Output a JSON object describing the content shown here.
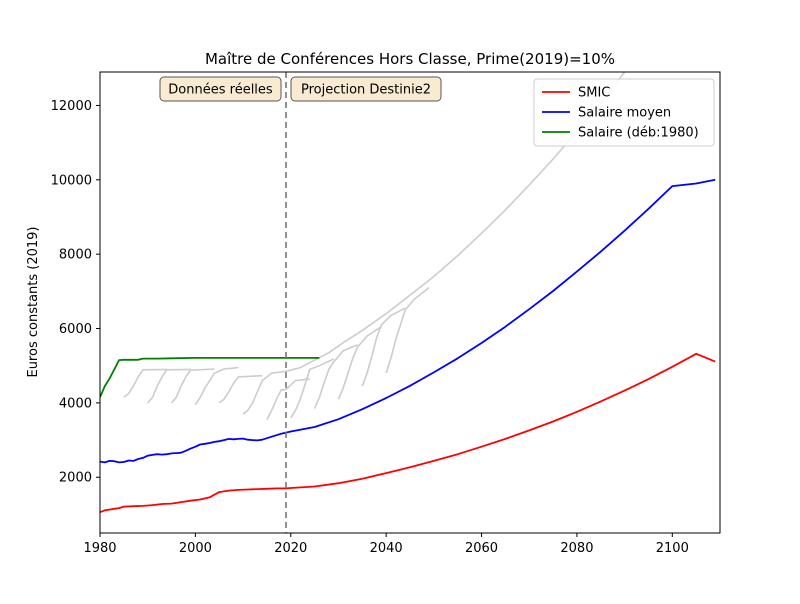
{
  "chart_data": {
    "type": "line",
    "title": "Maître de Conférences Hors Classe, Prime(2019)=10%",
    "xlabel": "",
    "ylabel": "Euros constants (2019)",
    "xlim": [
      1980,
      2110
    ],
    "ylim": [
      500,
      12900
    ],
    "x_ticks": [
      1980,
      2000,
      2020,
      2040,
      2060,
      2080,
      2100
    ],
    "y_ticks": [
      2000,
      4000,
      6000,
      8000,
      10000,
      12000
    ],
    "grid": false,
    "legend_position": "upper right",
    "divider": {
      "x": 2019,
      "style": "dashed",
      "color": "#777777"
    },
    "annotations": [
      {
        "text": "Données réelles",
        "x": 2004.5,
        "y": 12500
      },
      {
        "text": "Projection Destinie2",
        "x": 2029.5,
        "y": 12500
      }
    ],
    "series": [
      {
        "name": "SMIC",
        "color": "#ff0000",
        "points": [
          [
            1980,
            1060
          ],
          [
            1981,
            1110
          ],
          [
            1982,
            1130
          ],
          [
            1983,
            1150
          ],
          [
            1984,
            1170
          ],
          [
            1985,
            1210
          ],
          [
            1987,
            1220
          ],
          [
            1989,
            1230
          ],
          [
            1991,
            1250
          ],
          [
            1993,
            1280
          ],
          [
            1995,
            1290
          ],
          [
            1997,
            1330
          ],
          [
            1999,
            1370
          ],
          [
            2001,
            1400
          ],
          [
            2003,
            1460
          ],
          [
            2005,
            1600
          ],
          [
            2007,
            1640
          ],
          [
            2009,
            1660
          ],
          [
            2011,
            1670
          ],
          [
            2013,
            1680
          ],
          [
            2015,
            1690
          ],
          [
            2017,
            1700
          ],
          [
            2019,
            1700
          ],
          [
            2020,
            1710
          ],
          [
            2025,
            1750
          ],
          [
            2030,
            1840
          ],
          [
            2035,
            1960
          ],
          [
            2040,
            2110
          ],
          [
            2045,
            2270
          ],
          [
            2050,
            2440
          ],
          [
            2055,
            2620
          ],
          [
            2060,
            2820
          ],
          [
            2065,
            3030
          ],
          [
            2070,
            3260
          ],
          [
            2075,
            3500
          ],
          [
            2080,
            3760
          ],
          [
            2085,
            4040
          ],
          [
            2090,
            4330
          ],
          [
            2095,
            4640
          ],
          [
            2100,
            4970
          ],
          [
            2105,
            5320
          ],
          [
            2109,
            5110
          ]
        ]
      },
      {
        "name": "Salaire moyen",
        "color": "#0000ff",
        "points": [
          [
            1980,
            2420
          ],
          [
            1981,
            2400
          ],
          [
            1982,
            2440
          ],
          [
            1983,
            2430
          ],
          [
            1984,
            2400
          ],
          [
            1985,
            2410
          ],
          [
            1986,
            2450
          ],
          [
            1987,
            2440
          ],
          [
            1988,
            2490
          ],
          [
            1989,
            2520
          ],
          [
            1990,
            2580
          ],
          [
            1991,
            2600
          ],
          [
            1992,
            2620
          ],
          [
            1993,
            2610
          ],
          [
            1994,
            2620
          ],
          [
            1995,
            2640
          ],
          [
            1996,
            2650
          ],
          [
            1997,
            2660
          ],
          [
            1998,
            2710
          ],
          [
            1999,
            2770
          ],
          [
            2000,
            2820
          ],
          [
            2001,
            2880
          ],
          [
            2002,
            2900
          ],
          [
            2003,
            2920
          ],
          [
            2004,
            2950
          ],
          [
            2005,
            2970
          ],
          [
            2006,
            3000
          ],
          [
            2007,
            3030
          ],
          [
            2008,
            3020
          ],
          [
            2009,
            3030
          ],
          [
            2010,
            3040
          ],
          [
            2011,
            3010
          ],
          [
            2012,
            3000
          ],
          [
            2013,
            2990
          ],
          [
            2014,
            3010
          ],
          [
            2015,
            3050
          ],
          [
            2016,
            3090
          ],
          [
            2017,
            3130
          ],
          [
            2018,
            3170
          ],
          [
            2019,
            3200
          ],
          [
            2020,
            3230
          ],
          [
            2025,
            3350
          ],
          [
            2030,
            3560
          ],
          [
            2035,
            3830
          ],
          [
            2040,
            4130
          ],
          [
            2045,
            4460
          ],
          [
            2050,
            4820
          ],
          [
            2055,
            5200
          ],
          [
            2060,
            5610
          ],
          [
            2065,
            6050
          ],
          [
            2070,
            6520
          ],
          [
            2075,
            7010
          ],
          [
            2080,
            7530
          ],
          [
            2085,
            8070
          ],
          [
            2090,
            8630
          ],
          [
            2095,
            9220
          ],
          [
            2100,
            9830
          ],
          [
            2105,
            9900
          ],
          [
            2109,
            10000
          ]
        ]
      },
      {
        "name": "Salaire (déb:1980)",
        "color": "#008000",
        "points": [
          [
            1980,
            4150
          ],
          [
            1981,
            4450
          ],
          [
            1982,
            4650
          ],
          [
            1983,
            4900
          ],
          [
            1984,
            5150
          ],
          [
            1985,
            5160
          ],
          [
            1986,
            5160
          ],
          [
            1987,
            5160
          ],
          [
            1988,
            5160
          ],
          [
            1989,
            5190
          ],
          [
            1992,
            5190
          ],
          [
            1995,
            5200
          ],
          [
            2000,
            5210
          ],
          [
            2005,
            5210
          ],
          [
            2010,
            5210
          ],
          [
            2015,
            5210
          ],
          [
            2020,
            5210
          ],
          [
            2026,
            5210
          ]
        ]
      }
    ],
    "background_series": {
      "color": "#cccccc",
      "lines": [
        [
          [
            1985,
            4150
          ],
          [
            1986,
            4250
          ],
          [
            1987,
            4450
          ],
          [
            1988,
            4700
          ],
          [
            1989,
            4890
          ],
          [
            1994,
            4900
          ]
        ],
        [
          [
            1990,
            4000
          ],
          [
            1991,
            4150
          ],
          [
            1992,
            4450
          ],
          [
            1993,
            4700
          ],
          [
            1994,
            4890
          ],
          [
            1999,
            4900
          ]
        ],
        [
          [
            1995,
            4000
          ],
          [
            1996,
            4150
          ],
          [
            1997,
            4450
          ],
          [
            1998,
            4700
          ],
          [
            1999,
            4880
          ],
          [
            2004,
            4910
          ]
        ],
        [
          [
            2000,
            3950
          ],
          [
            2001,
            4150
          ],
          [
            2002,
            4400
          ],
          [
            2003,
            4600
          ],
          [
            2004,
            4800
          ],
          [
            2006,
            4910
          ],
          [
            2009,
            4950
          ]
        ],
        [
          [
            2005,
            4000
          ],
          [
            2006,
            4100
          ],
          [
            2007,
            4300
          ],
          [
            2008,
            4520
          ],
          [
            2009,
            4700
          ],
          [
            2014,
            4730
          ]
        ],
        [
          [
            2010,
            3700
          ],
          [
            2011,
            3800
          ],
          [
            2012,
            4000
          ],
          [
            2013,
            4300
          ],
          [
            2014,
            4600
          ],
          [
            2016,
            4800
          ],
          [
            2019,
            4850
          ]
        ],
        [
          [
            2015,
            3550
          ],
          [
            2016,
            3800
          ],
          [
            2017,
            4100
          ],
          [
            2018,
            4350
          ],
          [
            2019,
            4360
          ],
          [
            2021,
            4600
          ],
          [
            2024,
            4640
          ]
        ],
        [
          [
            2020,
            3600
          ],
          [
            2021,
            3800
          ],
          [
            2022,
            4100
          ],
          [
            2023,
            4500
          ],
          [
            2024,
            4900
          ],
          [
            2026,
            5000
          ],
          [
            2029,
            5180
          ]
        ],
        [
          [
            2025,
            3850
          ],
          [
            2026,
            4150
          ],
          [
            2027,
            4550
          ],
          [
            2028,
            4900
          ],
          [
            2029,
            5100
          ],
          [
            2031,
            5400
          ],
          [
            2034,
            5560
          ]
        ],
        [
          [
            2030,
            4100
          ],
          [
            2031,
            4400
          ],
          [
            2032,
            4800
          ],
          [
            2033,
            5200
          ],
          [
            2034,
            5500
          ],
          [
            2036,
            5800
          ],
          [
            2039,
            6050
          ]
        ],
        [
          [
            2035,
            4450
          ],
          [
            2036,
            4800
          ],
          [
            2037,
            5250
          ],
          [
            2038,
            5750
          ],
          [
            2039,
            6100
          ],
          [
            2041,
            6350
          ],
          [
            2044,
            6550
          ]
        ],
        [
          [
            2040,
            4800
          ],
          [
            2041,
            5200
          ],
          [
            2042,
            5700
          ],
          [
            2043,
            6100
          ],
          [
            2044,
            6500
          ],
          [
            2046,
            6800
          ],
          [
            2049,
            7100
          ]
        ],
        [
          [
            2019,
            4850
          ],
          [
            2022,
            4950
          ],
          [
            2025,
            5150
          ],
          [
            2028,
            5350
          ],
          [
            2031,
            5620
          ],
          [
            2035,
            5950
          ],
          [
            2040,
            6400
          ],
          [
            2045,
            6900
          ],
          [
            2050,
            7400
          ],
          [
            2055,
            7960
          ],
          [
            2060,
            8560
          ],
          [
            2065,
            9190
          ],
          [
            2070,
            9860
          ],
          [
            2075,
            10560
          ],
          [
            2080,
            11300
          ],
          [
            2085,
            12070
          ],
          [
            2090,
            12900
          ]
        ]
      ]
    }
  }
}
